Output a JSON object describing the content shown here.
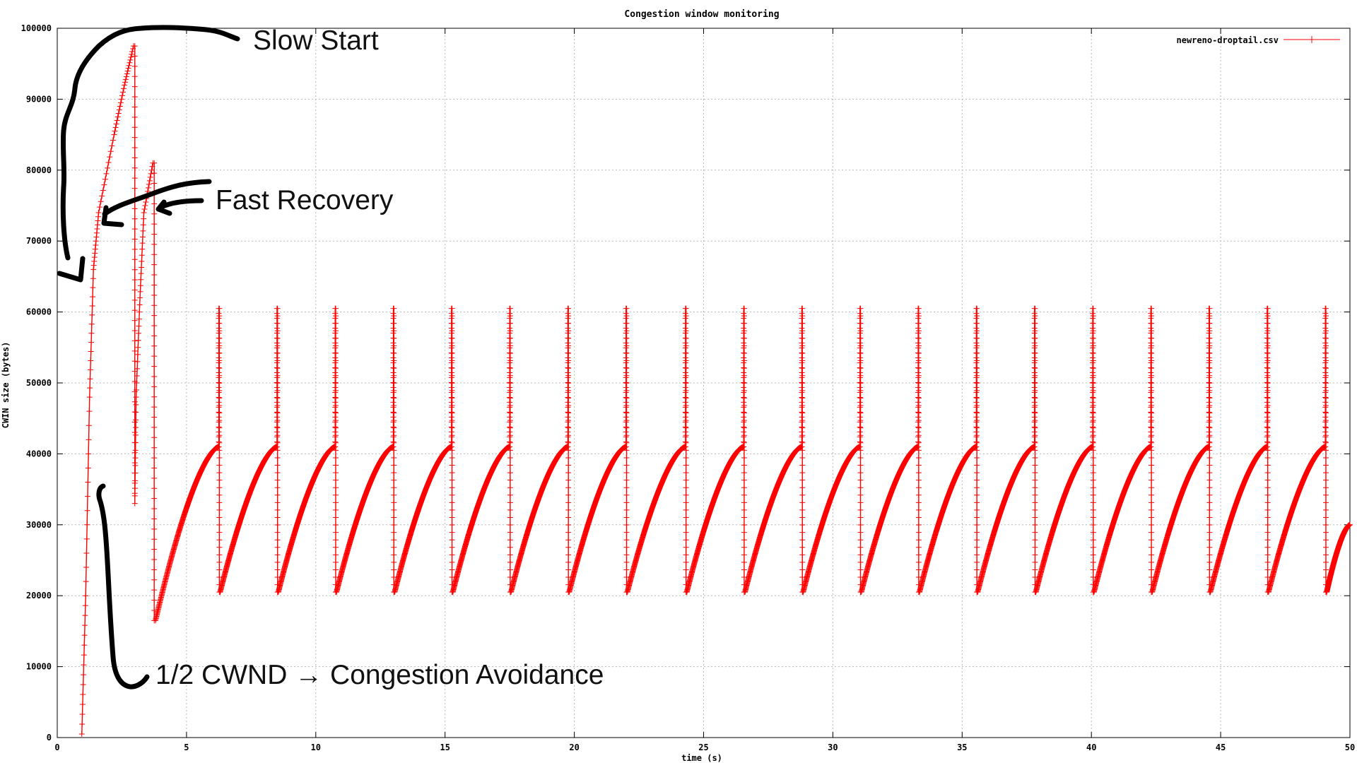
{
  "chart_data": {
    "type": "line",
    "title": "Congestion window monitoring",
    "xlabel": "time (s)",
    "ylabel": "CWIN size (bytes)",
    "xlim": [
      0,
      50
    ],
    "ylim": [
      0,
      100000
    ],
    "x_ticks": [
      "0",
      "5",
      "10",
      "15",
      "20",
      "25",
      "30",
      "35",
      "40",
      "45",
      "50"
    ],
    "y_ticks": [
      "0",
      "10000",
      "20000",
      "30000",
      "40000",
      "50000",
      "60000",
      "70000",
      "80000",
      "90000",
      "100000"
    ],
    "grid": true,
    "legend_position": "top-right",
    "series": [
      {
        "name": "newreno-droptail.csv",
        "color": "#ff0000",
        "marker": "plus",
        "description_points": {
          "slow_start": [
            [
              0.95,
              500
            ],
            [
              1.1,
              20000
            ],
            [
              1.25,
              48000
            ],
            [
              1.4,
              66000
            ],
            [
              1.6,
              74000
            ],
            [
              2.2,
              85000
            ],
            [
              2.6,
              92000
            ],
            [
              2.95,
              97500
            ]
          ],
          "first_loss_drop": [
            [
              3.0,
              97500
            ],
            [
              3.0,
              33000
            ]
          ],
          "fast_recovery_1": [
            [
              3.0,
              33000
            ],
            [
              3.05,
              48000
            ],
            [
              3.2,
              62000
            ],
            [
              3.35,
              74000
            ],
            [
              3.7,
              81000
            ]
          ],
          "second_loss_drop": [
            [
              3.75,
              81000
            ],
            [
              3.75,
              16500
            ]
          ],
          "first_growth_start": [
            3.8,
            16500
          ],
          "peaks_x": [
            6.25,
            8.5,
            10.75,
            13.0,
            15.25,
            17.5,
            19.75,
            22.0,
            24.3,
            26.55,
            28.8,
            31.05,
            33.3,
            35.55,
            37.8,
            40.05,
            42.3,
            44.55,
            46.8,
            49.05
          ],
          "sawtooth_low": 20500,
          "sawtooth_peak": 41000,
          "spike_top": 60500,
          "end_point": [
            50,
            30000
          ]
        }
      }
    ],
    "annotations": [
      {
        "text": "Slow Start"
      },
      {
        "text": "Fast Recovery"
      },
      {
        "text": "1/2 CWND → Congestion Avoidance"
      }
    ]
  }
}
